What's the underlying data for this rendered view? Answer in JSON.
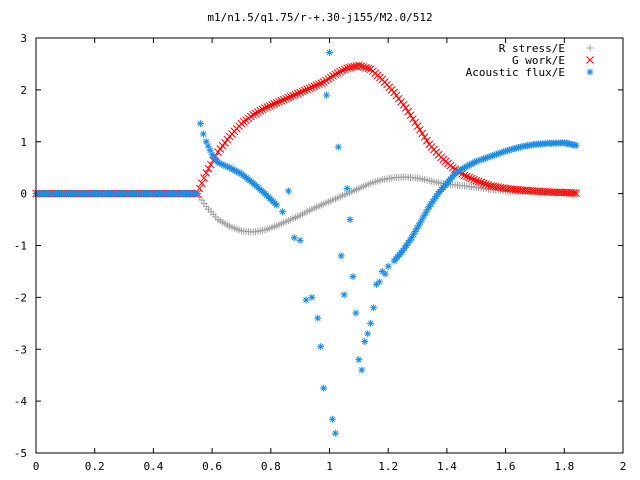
{
  "chart_data": {
    "type": "scatter",
    "title": "m1/n1.5/q1.75/r-+.30-j155/M2.0/512",
    "xlabel": "",
    "ylabel": "",
    "xlim": [
      0,
      2
    ],
    "ylim": [
      -5,
      3
    ],
    "x_ticks": [
      "0",
      "0.2",
      "0.4",
      "0.6",
      "0.8",
      "1",
      "1.2",
      "1.4",
      "1.6",
      "1.8",
      "2"
    ],
    "y_ticks": [
      "3",
      "2",
      "1",
      "0",
      "-1",
      "-2",
      "-3",
      "-4",
      "-5"
    ],
    "grid": false,
    "legend_position": "top-right",
    "series": [
      {
        "name": "R stress/E",
        "marker": "plus",
        "color": "#a0a0a0",
        "x": [
          0,
          0.1,
          0.2,
          0.3,
          0.4,
          0.5,
          0.55,
          0.58,
          0.62,
          0.66,
          0.7,
          0.74,
          0.78,
          0.82,
          0.86,
          0.9,
          0.94,
          0.98,
          1.02,
          1.06,
          1.1,
          1.14,
          1.18,
          1.22,
          1.26,
          1.3,
          1.34,
          1.38,
          1.42,
          1.46,
          1.5,
          1.55,
          1.6,
          1.65,
          1.7,
          1.75,
          1.8,
          1.84
        ],
        "y": [
          0,
          0,
          0,
          0,
          0,
          0,
          0,
          -0.25,
          -0.5,
          -0.63,
          -0.72,
          -0.74,
          -0.7,
          -0.62,
          -0.52,
          -0.42,
          -0.3,
          -0.2,
          -0.1,
          0,
          0.1,
          0.2,
          0.27,
          0.31,
          0.32,
          0.3,
          0.25,
          0.2,
          0.17,
          0.15,
          0.12,
          0.08,
          0.05,
          0.04,
          0.03,
          0.03,
          0.02,
          0.02
        ]
      },
      {
        "name": "G work/E",
        "marker": "x",
        "color": "#ff0000",
        "x": [
          0,
          0.1,
          0.2,
          0.3,
          0.4,
          0.5,
          0.55,
          0.58,
          0.62,
          0.66,
          0.7,
          0.74,
          0.78,
          0.82,
          0.86,
          0.9,
          0.94,
          0.98,
          1.02,
          1.06,
          1.1,
          1.14,
          1.18,
          1.22,
          1.26,
          1.3,
          1.34,
          1.38,
          1.42,
          1.46,
          1.5,
          1.55,
          1.6,
          1.65,
          1.7,
          1.75,
          1.8,
          1.84
        ],
        "y": [
          0,
          0,
          0,
          0,
          0,
          0,
          0,
          0.4,
          0.8,
          1.1,
          1.35,
          1.52,
          1.65,
          1.75,
          1.85,
          1.95,
          2.05,
          2.15,
          2.3,
          2.42,
          2.47,
          2.4,
          2.2,
          1.95,
          1.65,
          1.3,
          0.95,
          0.7,
          0.5,
          0.35,
          0.25,
          0.15,
          0.1,
          0.07,
          0.05,
          0.03,
          0.02,
          0.01
        ]
      },
      {
        "name": "Acoustic flux/E",
        "marker": "asterisk",
        "color": "#1e8ce6",
        "x": [
          0,
          0.1,
          0.2,
          0.3,
          0.4,
          0.5,
          0.55,
          0.56,
          0.57,
          0.58,
          0.6,
          0.62,
          0.64,
          0.66,
          0.7,
          0.74,
          0.78,
          0.82,
          0.84,
          0.86,
          0.88,
          0.9,
          0.92,
          0.94,
          0.96,
          0.97,
          0.98,
          0.99,
          1.0,
          1.01,
          1.02,
          1.03,
          1.04,
          1.05,
          1.06,
          1.07,
          1.08,
          1.09,
          1.1,
          1.11,
          1.12,
          1.13,
          1.14,
          1.15,
          1.16,
          1.17,
          1.18,
          1.19,
          1.2,
          1.22,
          1.25,
          1.28,
          1.31,
          1.34,
          1.37,
          1.4,
          1.43,
          1.46,
          1.5,
          1.55,
          1.6,
          1.65,
          1.7,
          1.75,
          1.8,
          1.84
        ],
        "y": [
          0,
          0,
          0,
          0,
          0,
          0,
          0,
          1.35,
          1.15,
          1.0,
          0.75,
          0.6,
          0.55,
          0.5,
          0.38,
          0.2,
          0.0,
          -0.22,
          -0.35,
          0.05,
          -0.85,
          -0.9,
          -2.05,
          -2.0,
          -2.4,
          -2.95,
          -3.75,
          1.9,
          2.72,
          -4.35,
          -4.62,
          0.9,
          -1.2,
          -1.95,
          0.1,
          -0.5,
          -1.6,
          -2.3,
          -3.2,
          -3.4,
          -2.85,
          -2.7,
          -2.5,
          -2.2,
          -1.75,
          -1.7,
          -1.5,
          -1.55,
          -1.4,
          -1.3,
          -1.1,
          -0.85,
          -0.55,
          -0.25,
          0.0,
          0.2,
          0.4,
          0.5,
          0.62,
          0.72,
          0.82,
          0.9,
          0.95,
          0.97,
          0.98,
          0.93
        ]
      }
    ]
  }
}
